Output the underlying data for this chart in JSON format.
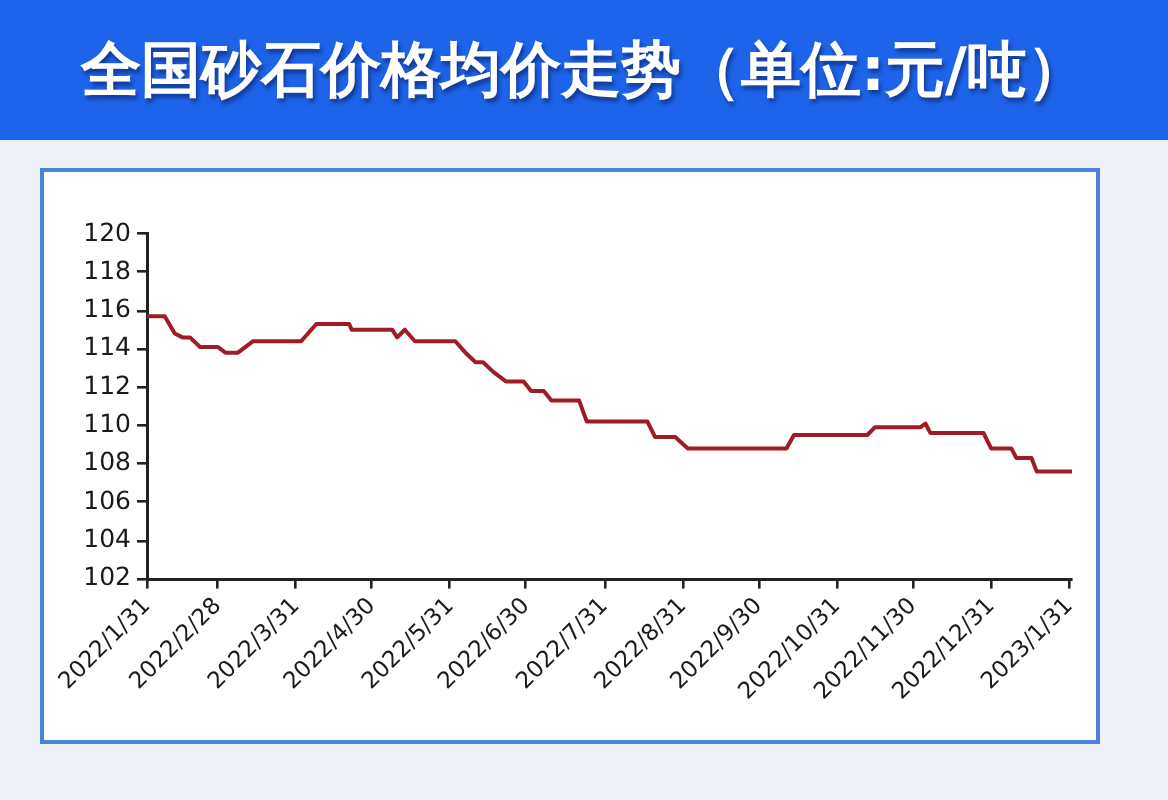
{
  "chart_data": {
    "type": "line",
    "title": "全国砂石价格均价走势（单位:元/吨）",
    "x": [
      "2022-01-31",
      "2022-02-07",
      "2022-02-11",
      "2022-02-14",
      "2022-02-17",
      "2022-02-21",
      "2022-02-28",
      "2022-03-03",
      "2022-03-08",
      "2022-03-14",
      "2022-04-02",
      "2022-04-08",
      "2022-04-21",
      "2022-04-22",
      "2022-05-08",
      "2022-05-10",
      "2022-05-13",
      "2022-05-17",
      "2022-06-02",
      "2022-06-06",
      "2022-06-10",
      "2022-06-13",
      "2022-06-17",
      "2022-06-22",
      "2022-06-29",
      "2022-07-02",
      "2022-07-07",
      "2022-07-10",
      "2022-07-21",
      "2022-07-24",
      "2022-08-17",
      "2022-08-20",
      "2022-08-28",
      "2022-09-02",
      "2022-10-11",
      "2022-10-14",
      "2022-11-12",
      "2022-11-15",
      "2022-12-03",
      "2022-12-05",
      "2022-12-07",
      "2022-12-28",
      "2022-12-31",
      "2023-01-08",
      "2023-01-10",
      "2023-01-16",
      "2023-01-18",
      "2023-02-01"
    ],
    "values": [
      115.7,
      115.7,
      114.8,
      114.6,
      114.6,
      114.1,
      114.1,
      113.8,
      113.8,
      114.4,
      114.4,
      115.3,
      115.3,
      115.0,
      115.0,
      114.6,
      115.0,
      114.4,
      114.4,
      113.8,
      113.3,
      113.3,
      112.8,
      112.3,
      112.3,
      111.8,
      111.8,
      111.3,
      111.3,
      110.2,
      110.2,
      109.4,
      109.4,
      108.8,
      108.8,
      109.5,
      109.5,
      109.9,
      109.9,
      110.1,
      109.6,
      109.6,
      108.8,
      108.8,
      108.3,
      108.3,
      107.6,
      107.6
    ],
    "color": "#a01c24",
    "xlim": [
      "2022-01-31",
      "2023-02-01"
    ],
    "xticks": [
      {
        "value": "2022-01-31",
        "label": "2022/1/31"
      },
      {
        "value": "2022-02-28",
        "label": "2022/2/28"
      },
      {
        "value": "2022-03-31",
        "label": "2022/3/31"
      },
      {
        "value": "2022-04-30",
        "label": "2022/4/30"
      },
      {
        "value": "2022-05-31",
        "label": "2022/5/31"
      },
      {
        "value": "2022-06-30",
        "label": "2022/6/30"
      },
      {
        "value": "2022-07-31",
        "label": "2022/7/31"
      },
      {
        "value": "2022-08-31",
        "label": "2022/8/31"
      },
      {
        "value": "2022-09-30",
        "label": "2022/9/30"
      },
      {
        "value": "2022-10-31",
        "label": "2022/10/31"
      },
      {
        "value": "2022-11-30",
        "label": "2022/11/30"
      },
      {
        "value": "2022-12-31",
        "label": "2022/12/31"
      },
      {
        "value": "2023-01-31",
        "label": "2023/1/31"
      }
    ],
    "ylim": [
      102,
      120
    ],
    "yticks": [
      102,
      104,
      106,
      108,
      110,
      112,
      114,
      116,
      118,
      120
    ],
    "marker": "none"
  }
}
